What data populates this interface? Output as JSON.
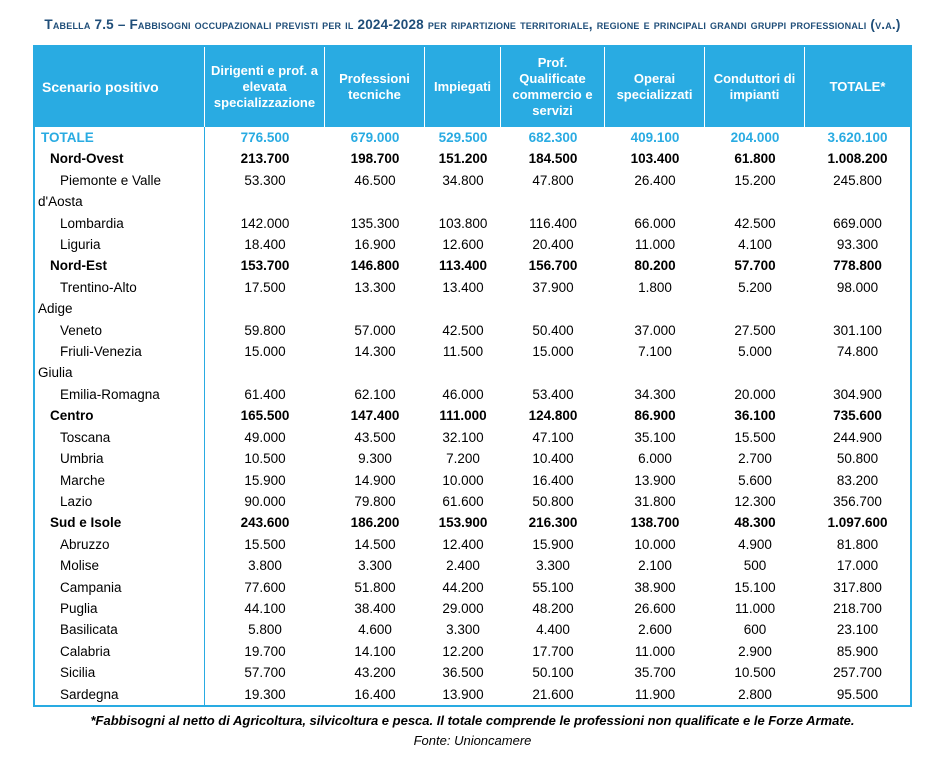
{
  "title": "Tabella 7.5 – Fabbisogni occupazionali previsti per il 2024-2028 per ripartizione territoriale, regione e principali grandi gruppi professionali (v.a.)",
  "colors": {
    "accent": "#29ABE2",
    "title_color": "#1F4E79"
  },
  "table": {
    "header": {
      "scenario": "Scenario positivo",
      "columns": [
        "Dirigenti e prof. a elevata specializzazione",
        "Professioni tecniche",
        "Impiegati",
        "Prof. Qualificate commercio e servizi",
        "Operai specializzati",
        "Conduttori di impianti",
        "TOTALE*"
      ]
    },
    "rows": [
      {
        "style": "total",
        "label_lines": [
          "TOTALE"
        ],
        "values": [
          "776.500",
          "679.000",
          "529.500",
          "682.300",
          "409.100",
          "204.000",
          "3.620.100"
        ]
      },
      {
        "style": "group",
        "label_lines": [
          "Nord-Ovest"
        ],
        "values": [
          "213.700",
          "198.700",
          "151.200",
          "184.500",
          "103.400",
          "61.800",
          "1.008.200"
        ]
      },
      {
        "style": "region",
        "label_lines": [
          "Piemonte e Valle",
          "d'Aosta"
        ],
        "values": [
          "53.300",
          "46.500",
          "34.800",
          "47.800",
          "26.400",
          "15.200",
          "245.800"
        ]
      },
      {
        "style": "region",
        "label_lines": [
          "Lombardia"
        ],
        "values": [
          "142.000",
          "135.300",
          "103.800",
          "116.400",
          "66.000",
          "42.500",
          "669.000"
        ]
      },
      {
        "style": "region",
        "label_lines": [
          "Liguria"
        ],
        "values": [
          "18.400",
          "16.900",
          "12.600",
          "20.400",
          "11.000",
          "4.100",
          "93.300"
        ]
      },
      {
        "style": "group",
        "label_lines": [
          "Nord-Est"
        ],
        "values": [
          "153.700",
          "146.800",
          "113.400",
          "156.700",
          "80.200",
          "57.700",
          "778.800"
        ]
      },
      {
        "style": "region",
        "label_lines": [
          "Trentino-Alto",
          "Adige"
        ],
        "values": [
          "17.500",
          "13.300",
          "13.400",
          "37.900",
          "1.800",
          "5.200",
          "98.000"
        ]
      },
      {
        "style": "region",
        "label_lines": [
          "Veneto"
        ],
        "values": [
          "59.800",
          "57.000",
          "42.500",
          "50.400",
          "37.000",
          "27.500",
          "301.100"
        ]
      },
      {
        "style": "region",
        "label_lines": [
          "Friuli-Venezia",
          "Giulia"
        ],
        "values": [
          "15.000",
          "14.300",
          "11.500",
          "15.000",
          "7.100",
          "5.000",
          "74.800"
        ]
      },
      {
        "style": "region",
        "label_lines": [
          "Emilia-Romagna"
        ],
        "values": [
          "61.400",
          "62.100",
          "46.000",
          "53.400",
          "34.300",
          "20.000",
          "304.900"
        ]
      },
      {
        "style": "group",
        "label_lines": [
          "Centro"
        ],
        "values": [
          "165.500",
          "147.400",
          "111.000",
          "124.800",
          "86.900",
          "36.100",
          "735.600"
        ]
      },
      {
        "style": "region",
        "label_lines": [
          "Toscana"
        ],
        "values": [
          "49.000",
          "43.500",
          "32.100",
          "47.100",
          "35.100",
          "15.500",
          "244.900"
        ]
      },
      {
        "style": "region",
        "label_lines": [
          "Umbria"
        ],
        "values": [
          "10.500",
          "9.300",
          "7.200",
          "10.400",
          "6.000",
          "2.700",
          "50.800"
        ]
      },
      {
        "style": "region",
        "label_lines": [
          "Marche"
        ],
        "values": [
          "15.900",
          "14.900",
          "10.000",
          "16.400",
          "13.900",
          "5.600",
          "83.200"
        ]
      },
      {
        "style": "region",
        "label_lines": [
          "Lazio"
        ],
        "values": [
          "90.000",
          "79.800",
          "61.600",
          "50.800",
          "31.800",
          "12.300",
          "356.700"
        ]
      },
      {
        "style": "group",
        "label_lines": [
          "Sud e Isole"
        ],
        "values": [
          "243.600",
          "186.200",
          "153.900",
          "216.300",
          "138.700",
          "48.300",
          "1.097.600"
        ]
      },
      {
        "style": "region",
        "label_lines": [
          "Abruzzo"
        ],
        "values": [
          "15.500",
          "14.500",
          "12.400",
          "15.900",
          "10.000",
          "4.900",
          "81.800"
        ]
      },
      {
        "style": "region",
        "label_lines": [
          "Molise"
        ],
        "values": [
          "3.800",
          "3.300",
          "2.400",
          "3.300",
          "2.100",
          "500",
          "17.000"
        ]
      },
      {
        "style": "region",
        "label_lines": [
          "Campania"
        ],
        "values": [
          "77.600",
          "51.800",
          "44.200",
          "55.100",
          "38.900",
          "15.100",
          "317.800"
        ]
      },
      {
        "style": "region",
        "label_lines": [
          "Puglia"
        ],
        "values": [
          "44.100",
          "38.400",
          "29.000",
          "48.200",
          "26.600",
          "11.000",
          "218.700"
        ]
      },
      {
        "style": "region",
        "label_lines": [
          "Basilicata"
        ],
        "values": [
          "5.800",
          "4.600",
          "3.300",
          "4.400",
          "2.600",
          "600",
          "23.100"
        ]
      },
      {
        "style": "region",
        "label_lines": [
          "Calabria"
        ],
        "values": [
          "19.700",
          "14.100",
          "12.200",
          "17.700",
          "11.000",
          "2.900",
          "85.900"
        ]
      },
      {
        "style": "region",
        "label_lines": [
          "Sicilia"
        ],
        "values": [
          "57.700",
          "43.200",
          "36.500",
          "50.100",
          "35.700",
          "10.500",
          "257.700"
        ]
      },
      {
        "style": "region",
        "label_lines": [
          "Sardegna"
        ],
        "values": [
          "19.300",
          "16.400",
          "13.900",
          "21.600",
          "11.900",
          "2.800",
          "95.500"
        ]
      }
    ]
  },
  "footnotes": {
    "note": "*Fabbisogni al netto di Agricoltura, silvicoltura e pesca. Il totale comprende le professioni non qualificate e le Forze Armate.",
    "source": "Fonte: Unioncamere"
  }
}
